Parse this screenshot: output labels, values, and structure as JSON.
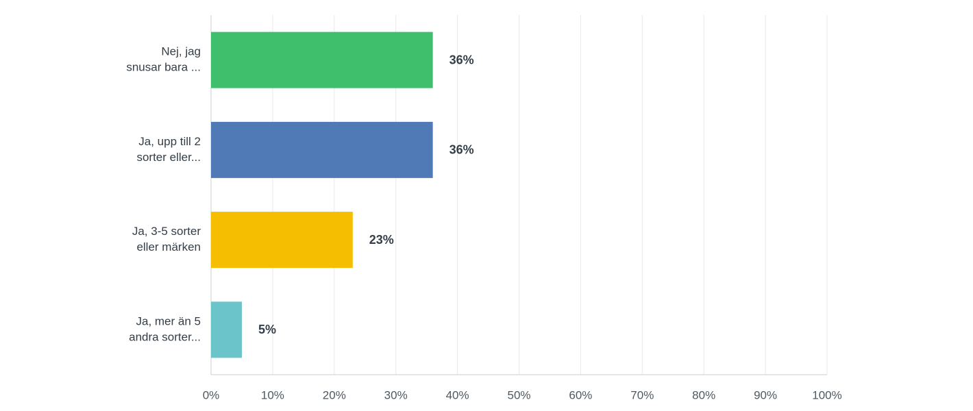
{
  "chart_data": {
    "type": "bar",
    "orientation": "horizontal",
    "categories": [
      [
        "Nej, jag",
        "snusar bara ..."
      ],
      [
        "Ja, upp till 2",
        "sorter eller..."
      ],
      [
        "Ja, 3-5 sorter",
        "eller märken"
      ],
      [
        "Ja, mer än 5",
        "andra sorter..."
      ]
    ],
    "values": [
      36,
      36,
      23,
      5
    ],
    "value_labels": [
      "36%",
      "36%",
      "23%",
      "5%"
    ],
    "colors": [
      "#3fbf6c",
      "#4f7ab5",
      "#f6be00",
      "#6ac4c9"
    ],
    "xlim": [
      0,
      100
    ],
    "xticks": [
      {
        "value": 0,
        "label": "0%"
      },
      {
        "value": 10,
        "label": "10%"
      },
      {
        "value": 20,
        "label": "20%"
      },
      {
        "value": 30,
        "label": "30%"
      },
      {
        "value": 40,
        "label": "40%"
      },
      {
        "value": 50,
        "label": "50%"
      },
      {
        "value": 60,
        "label": "60%"
      },
      {
        "value": 70,
        "label": "70%"
      },
      {
        "value": 80,
        "label": "80%"
      },
      {
        "value": 90,
        "label": "90%"
      },
      {
        "value": 100,
        "label": "100%"
      }
    ],
    "grid": true
  }
}
